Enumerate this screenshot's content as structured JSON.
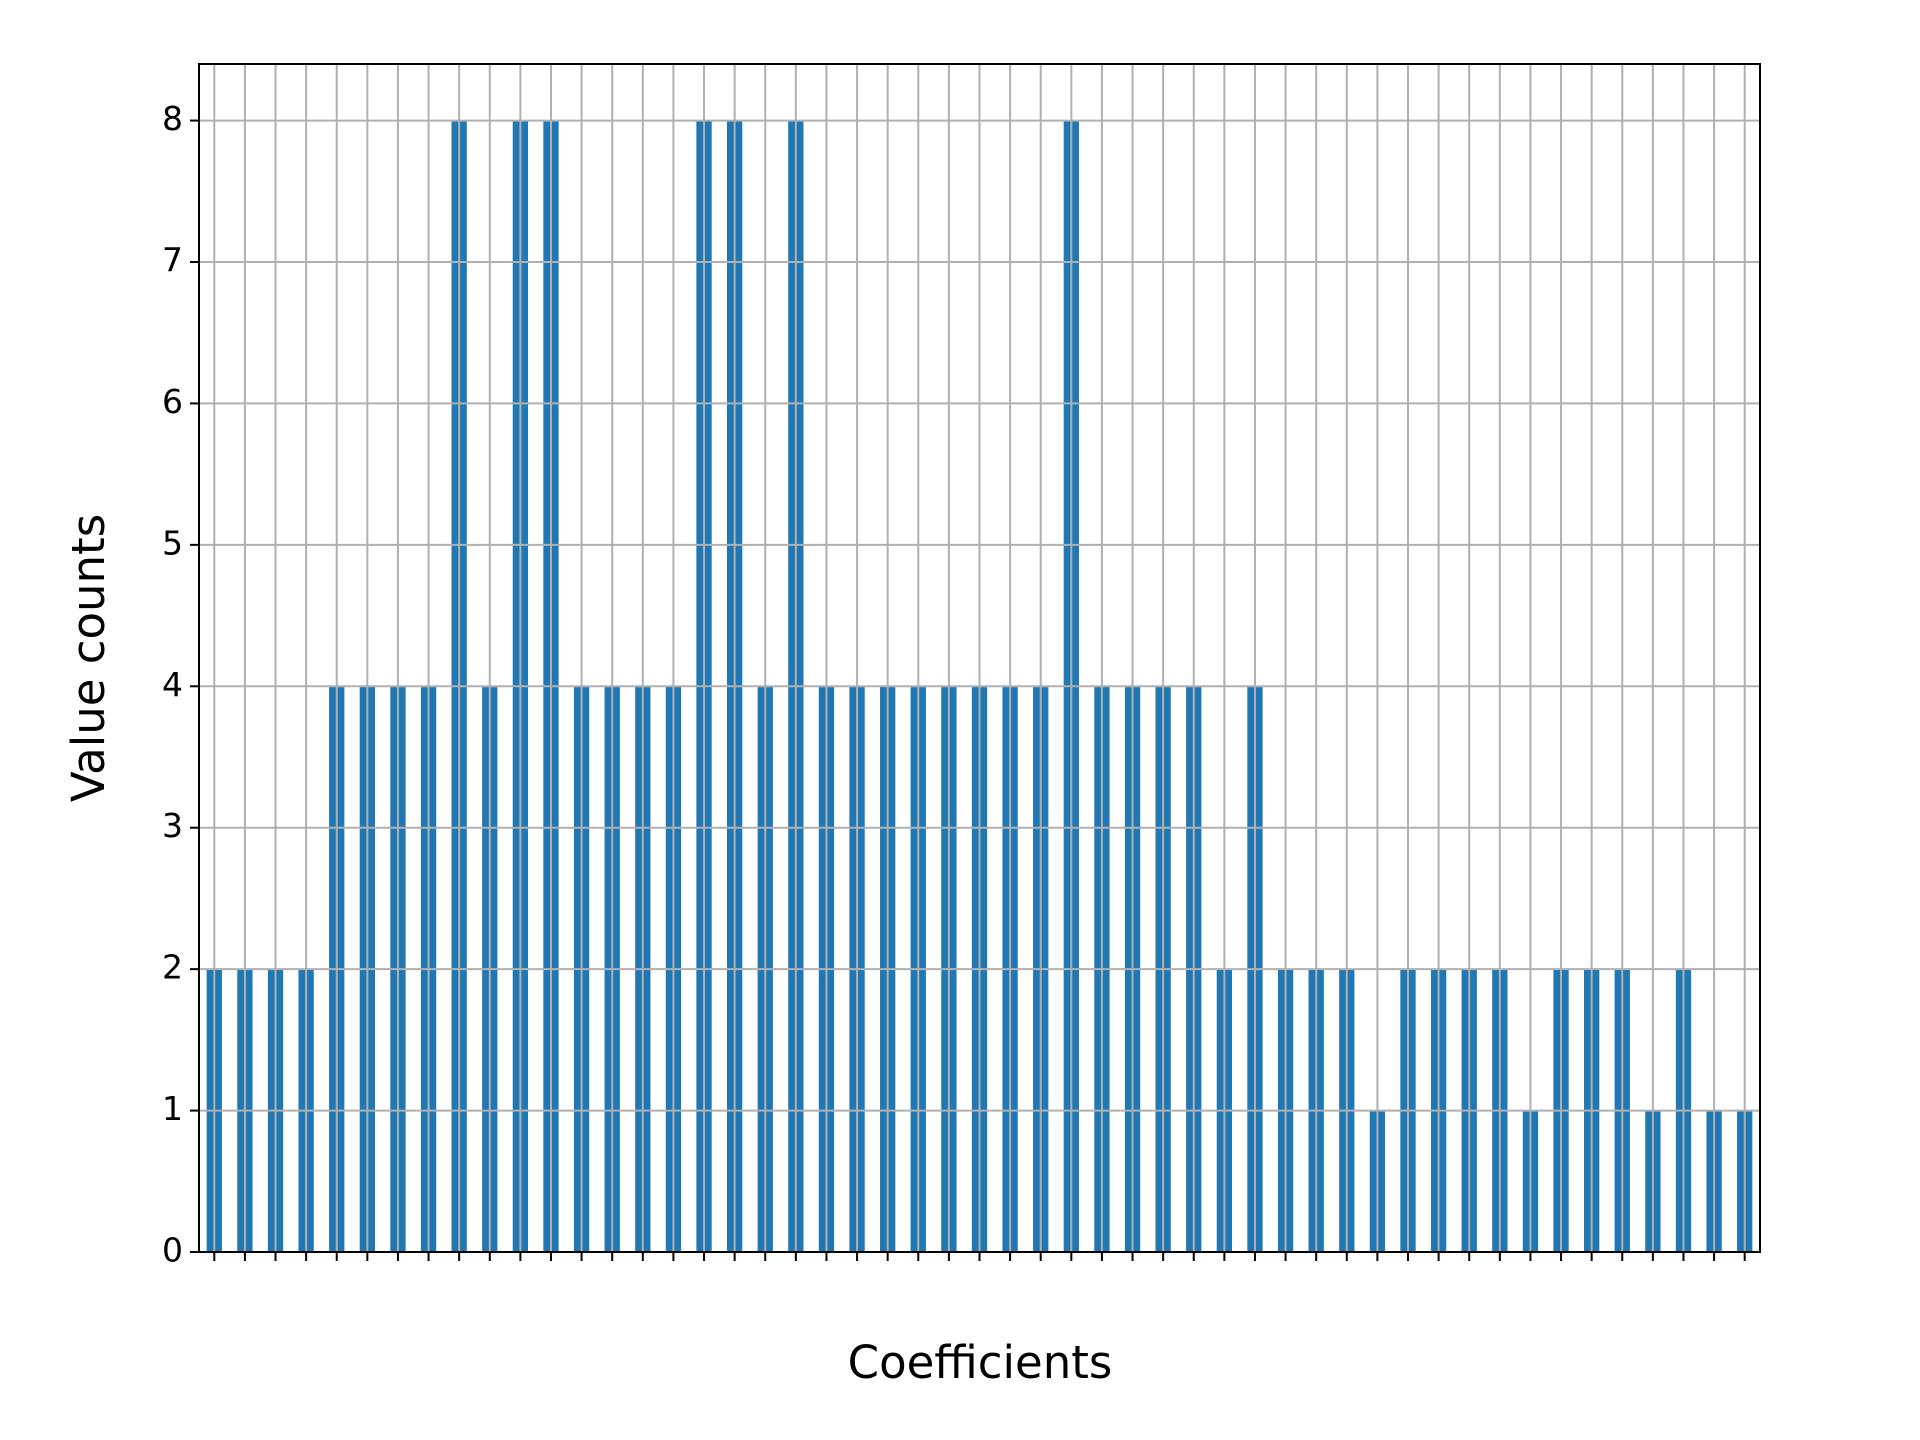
{
  "chart_data": {
    "type": "bar",
    "xlabel": "Coefficients",
    "ylabel": "Value counts",
    "categories": [
      null,
      null,
      null,
      null,
      null,
      null,
      null,
      null,
      null,
      null,
      null,
      null,
      null,
      null,
      null,
      null,
      null,
      null,
      null,
      null,
      null,
      null,
      null,
      null,
      null,
      null,
      null,
      null,
      null,
      null,
      null,
      null,
      null,
      null,
      null,
      null,
      null,
      null,
      null,
      null,
      null,
      null,
      null,
      null,
      null,
      null,
      null,
      null,
      null,
      null,
      null
    ],
    "values": [
      2,
      2,
      2,
      2,
      4,
      4,
      4,
      4,
      8,
      4,
      8,
      8,
      4,
      4,
      4,
      4,
      8,
      8,
      4,
      8,
      4,
      4,
      4,
      4,
      4,
      4,
      4,
      4,
      8,
      4,
      4,
      4,
      4,
      2,
      4,
      2,
      2,
      2,
      1,
      2,
      2,
      2,
      2,
      1,
      2,
      2,
      2,
      1,
      2,
      1,
      1
    ],
    "color": "#1f77b4",
    "ylim": [
      0,
      8.4
    ],
    "yticks": [
      0,
      1,
      2,
      3,
      4,
      5,
      6,
      7,
      8
    ],
    "grid": true
  }
}
